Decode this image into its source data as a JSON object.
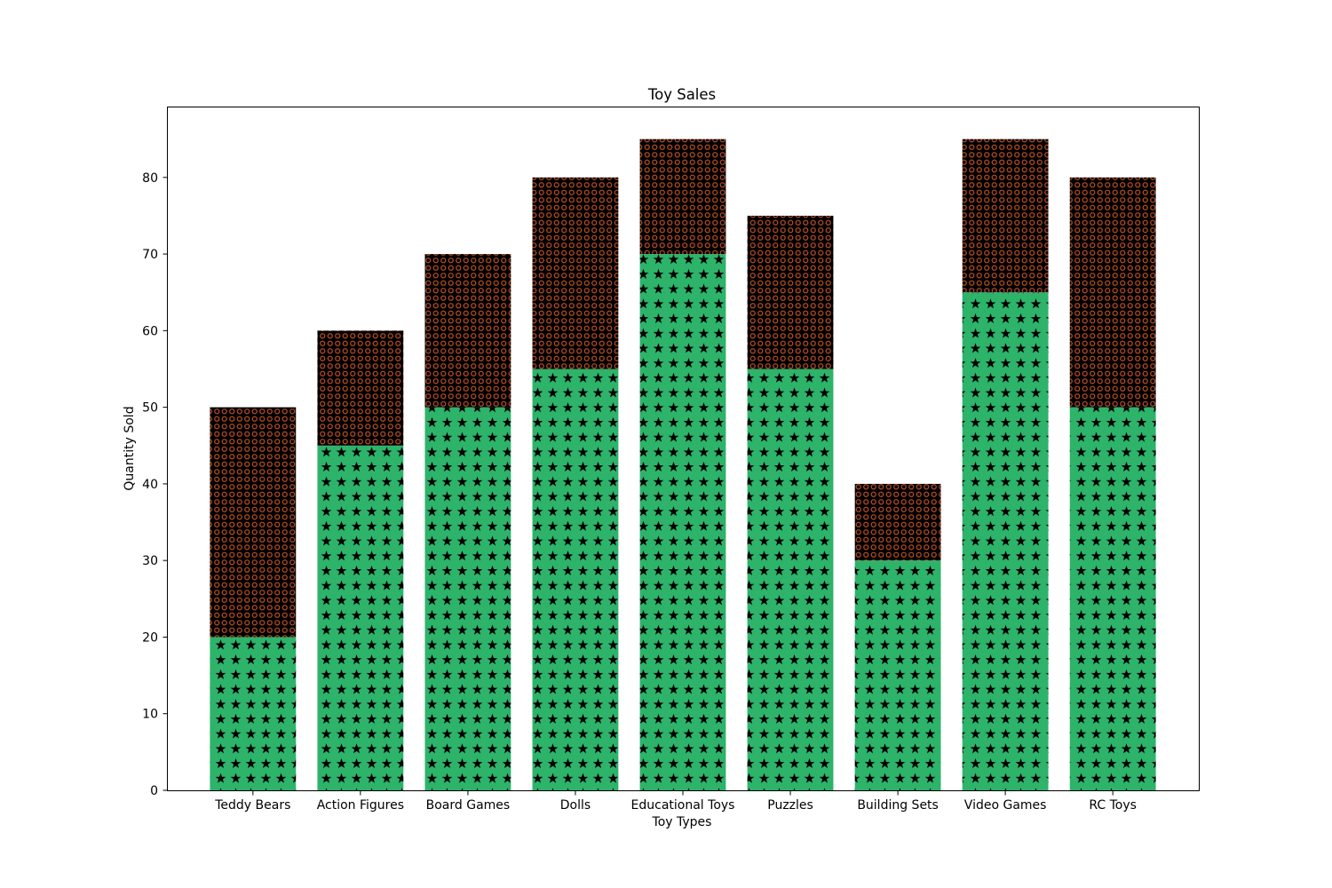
{
  "chart_data": {
    "type": "bar",
    "stacked": true,
    "title": "Toy Sales",
    "xlabel": "Toy Types",
    "ylabel": "Quantity Sold",
    "categories": [
      "Teddy Bears",
      "Action Figures",
      "Board Games",
      "Dolls",
      "Educational Toys",
      "Puzzles",
      "Building Sets",
      "Video Games",
      "RC Toys"
    ],
    "series": [
      {
        "values": [
          20,
          45,
          50,
          55,
          70,
          55,
          30,
          65,
          50
        ],
        "color": "#2db36a",
        "hatch": "stars"
      },
      {
        "values": [
          30,
          15,
          20,
          25,
          15,
          20,
          10,
          20,
          30
        ],
        "color": "#b04a24",
        "hatch": "small-circles"
      }
    ],
    "ylim": [
      0,
      89.25
    ],
    "yticks": [
      0,
      10,
      20,
      30,
      40,
      50,
      60,
      70,
      80
    ],
    "grid": false,
    "legend": "none"
  }
}
